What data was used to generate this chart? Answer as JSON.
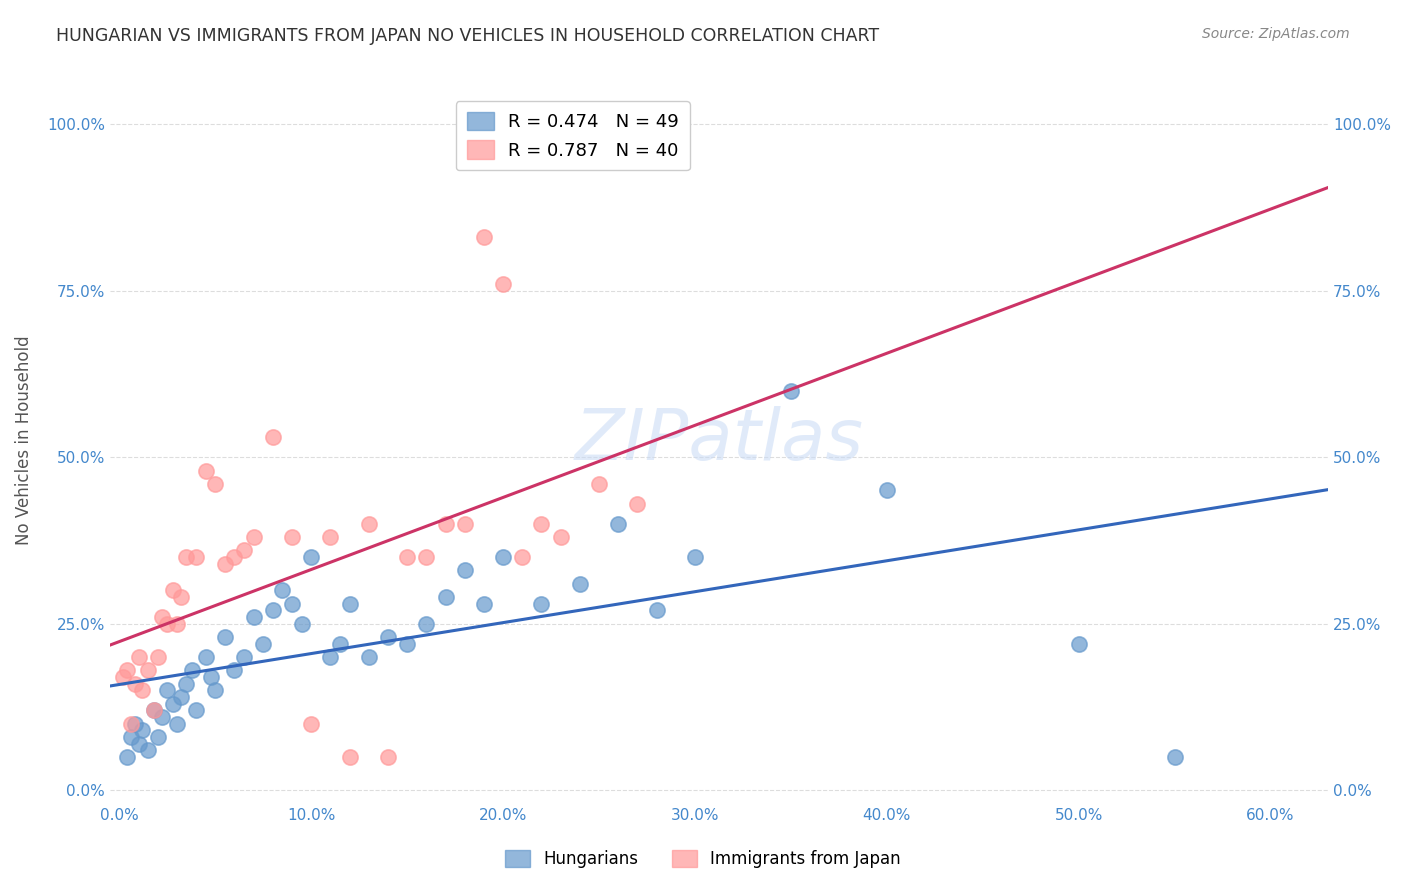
{
  "title": "HUNGARIAN VS IMMIGRANTS FROM JAPAN NO VEHICLES IN HOUSEHOLD CORRELATION CHART",
  "source": "Source: ZipAtlas.com",
  "xlabel_ticks": [
    "0.0%",
    "10.0%",
    "20.0%",
    "30.0%",
    "40.0%",
    "50.0%",
    "60.0%"
  ],
  "xlabel_vals": [
    0.0,
    0.1,
    0.2,
    0.3,
    0.4,
    0.5,
    0.6
  ],
  "ylabel_ticks": [
    "0.0%",
    "25.0%",
    "50.0%",
    "75.0%",
    "100.0%"
  ],
  "ylabel_vals": [
    0.0,
    0.25,
    0.5,
    0.75,
    1.0
  ],
  "xlim": [
    -0.005,
    0.63
  ],
  "ylim": [
    -0.02,
    1.07
  ],
  "watermark": "ZIPatlas",
  "legend_entries": [
    {
      "label": "R = 0.474   N = 49",
      "color": "#6699cc"
    },
    {
      "label": "R = 0.787   N = 40",
      "color": "#ff9999"
    }
  ],
  "hungarian_r": 0.474,
  "japan_r": 0.787,
  "blue_color": "#6699cc",
  "pink_color": "#ff9999",
  "blue_line_color": "#3366bb",
  "pink_line_color": "#cc3366",
  "hungarian_x": [
    0.004,
    0.006,
    0.008,
    0.01,
    0.012,
    0.015,
    0.018,
    0.02,
    0.022,
    0.025,
    0.028,
    0.03,
    0.032,
    0.035,
    0.038,
    0.04,
    0.045,
    0.048,
    0.05,
    0.055,
    0.06,
    0.065,
    0.07,
    0.075,
    0.08,
    0.085,
    0.09,
    0.095,
    0.1,
    0.11,
    0.115,
    0.12,
    0.13,
    0.14,
    0.15,
    0.16,
    0.17,
    0.18,
    0.19,
    0.2,
    0.22,
    0.24,
    0.26,
    0.28,
    0.3,
    0.35,
    0.4,
    0.5,
    0.55
  ],
  "hungarian_y": [
    0.05,
    0.08,
    0.1,
    0.07,
    0.09,
    0.06,
    0.12,
    0.08,
    0.11,
    0.15,
    0.13,
    0.1,
    0.14,
    0.16,
    0.18,
    0.12,
    0.2,
    0.17,
    0.15,
    0.23,
    0.18,
    0.2,
    0.26,
    0.22,
    0.27,
    0.3,
    0.28,
    0.25,
    0.35,
    0.2,
    0.22,
    0.28,
    0.2,
    0.23,
    0.22,
    0.25,
    0.29,
    0.33,
    0.28,
    0.35,
    0.28,
    0.31,
    0.4,
    0.27,
    0.35,
    0.6,
    0.45,
    0.22,
    0.05
  ],
  "japan_x": [
    0.002,
    0.004,
    0.006,
    0.008,
    0.01,
    0.012,
    0.015,
    0.018,
    0.02,
    0.022,
    0.025,
    0.028,
    0.03,
    0.032,
    0.035,
    0.04,
    0.045,
    0.05,
    0.055,
    0.06,
    0.065,
    0.07,
    0.08,
    0.09,
    0.1,
    0.11,
    0.12,
    0.13,
    0.14,
    0.15,
    0.16,
    0.17,
    0.18,
    0.19,
    0.2,
    0.21,
    0.22,
    0.23,
    0.25,
    0.27
  ],
  "japan_y": [
    0.17,
    0.18,
    0.1,
    0.16,
    0.2,
    0.15,
    0.18,
    0.12,
    0.2,
    0.26,
    0.25,
    0.3,
    0.25,
    0.29,
    0.35,
    0.35,
    0.48,
    0.46,
    0.34,
    0.35,
    0.36,
    0.38,
    0.53,
    0.38,
    0.1,
    0.38,
    0.05,
    0.4,
    0.05,
    0.35,
    0.35,
    0.4,
    0.4,
    0.83,
    0.76,
    0.35,
    0.4,
    0.38,
    0.46,
    0.43
  ],
  "ylabel": "No Vehicles in Household",
  "background_color": "#ffffff",
  "grid_color": "#dddddd"
}
